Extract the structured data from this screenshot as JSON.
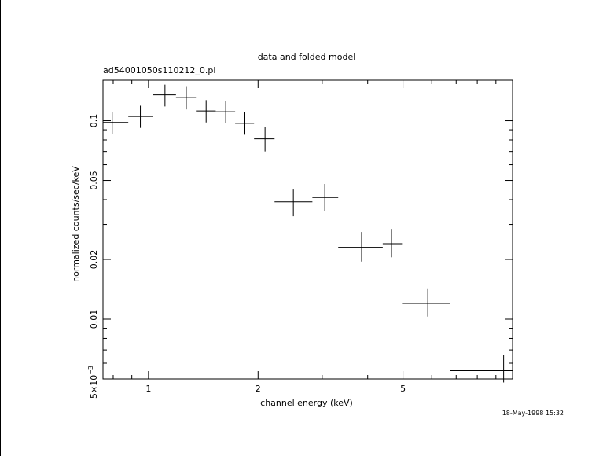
{
  "chart_data": {
    "type": "scatter",
    "title": "data and folded model",
    "subtitle": "ad54001050s110212_0.pi",
    "xlabel": "channel energy (keV)",
    "ylabel": "normalized counts/sec/keV",
    "timestamp": "18-May-1998 15:32",
    "x_scale": "log",
    "y_scale": "log",
    "xlim": [
      0.75,
      10.0
    ],
    "ylim": [
      0.005,
      0.16
    ],
    "grid": false,
    "x_ticks": [
      {
        "value": 1,
        "label": "1"
      },
      {
        "value": 2,
        "label": "2"
      },
      {
        "value": 5,
        "label": "5"
      }
    ],
    "y_ticks": [
      {
        "value": 0.1,
        "label": "0.1"
      },
      {
        "value": 0.05,
        "label": "0.05"
      },
      {
        "value": 0.02,
        "label": "0.02"
      },
      {
        "value": 0.01,
        "label": "0.01"
      }
    ],
    "y_special_label": {
      "value": 0.005,
      "mantissa": "5×10",
      "exponent": "−3"
    },
    "points": [
      {
        "x": 0.795,
        "xlo": 0.75,
        "xhi": 0.88,
        "y": 0.098,
        "ylo": 0.086,
        "yhi": 0.111
      },
      {
        "x": 0.95,
        "xlo": 0.88,
        "xhi": 1.03,
        "y": 0.105,
        "ylo": 0.092,
        "yhi": 0.119
      },
      {
        "x": 1.11,
        "xlo": 1.03,
        "xhi": 1.19,
        "y": 0.135,
        "ylo": 0.118,
        "yhi": 0.152
      },
      {
        "x": 1.27,
        "xlo": 1.19,
        "xhi": 1.35,
        "y": 0.131,
        "ylo": 0.114,
        "yhi": 0.148
      },
      {
        "x": 1.44,
        "xlo": 1.35,
        "xhi": 1.53,
        "y": 0.112,
        "ylo": 0.098,
        "yhi": 0.127
      },
      {
        "x": 1.63,
        "xlo": 1.53,
        "xhi": 1.73,
        "y": 0.111,
        "ylo": 0.097,
        "yhi": 0.126
      },
      {
        "x": 1.84,
        "xlo": 1.73,
        "xhi": 1.95,
        "y": 0.097,
        "ylo": 0.085,
        "yhi": 0.111
      },
      {
        "x": 2.09,
        "xlo": 1.95,
        "xhi": 2.22,
        "y": 0.081,
        "ylo": 0.07,
        "yhi": 0.093
      },
      {
        "x": 2.5,
        "xlo": 2.22,
        "xhi": 2.82,
        "y": 0.039,
        "ylo": 0.033,
        "yhi": 0.045
      },
      {
        "x": 3.05,
        "xlo": 2.82,
        "xhi": 3.32,
        "y": 0.041,
        "ylo": 0.035,
        "yhi": 0.048
      },
      {
        "x": 3.85,
        "xlo": 3.32,
        "xhi": 4.4,
        "y": 0.023,
        "ylo": 0.0195,
        "yhi": 0.0275
      },
      {
        "x": 4.65,
        "xlo": 4.4,
        "xhi": 4.97,
        "y": 0.024,
        "ylo": 0.0205,
        "yhi": 0.0285
      },
      {
        "x": 5.85,
        "xlo": 4.97,
        "xhi": 6.75,
        "y": 0.012,
        "ylo": 0.0103,
        "yhi": 0.0143
      },
      {
        "x": 9.45,
        "xlo": 6.75,
        "xhi": 10.0,
        "y": 0.0055,
        "ylo": 0.0048,
        "yhi": 0.0066
      }
    ]
  }
}
